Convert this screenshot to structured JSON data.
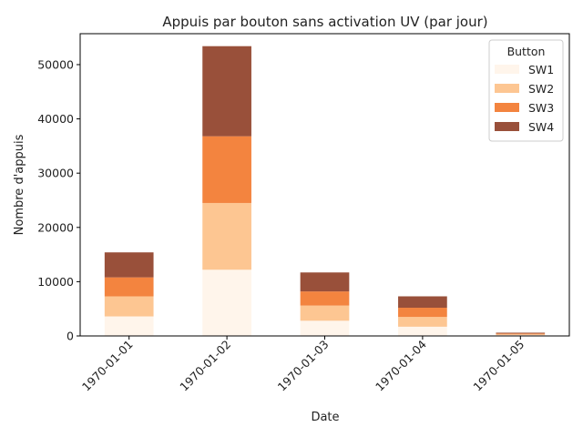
{
  "chart_data": {
    "type": "bar",
    "stacked": true,
    "title": "Appuis par bouton sans activation UV (par jour)",
    "xlabel": "Date",
    "ylabel": "Nombre d'appuis",
    "ylim": [
      0,
      55700
    ],
    "yticks": [
      0,
      10000,
      20000,
      30000,
      40000,
      50000
    ],
    "grid": false,
    "legend": {
      "title": "Button",
      "placement": "top-right"
    },
    "categories": [
      "1970-01-01",
      "1970-01-02",
      "1970-01-03",
      "1970-01-04",
      "1970-01-05"
    ],
    "series": [
      {
        "name": "SW1",
        "color": "#fff5eb",
        "values": [
          3600,
          12200,
          2800,
          1700,
          150
        ]
      },
      {
        "name": "SW2",
        "color": "#fdc692",
        "values": [
          3700,
          12300,
          2800,
          1800,
          150
        ]
      },
      {
        "name": "SW3",
        "color": "#f3843f",
        "values": [
          3500,
          12300,
          2600,
          1700,
          150
        ]
      },
      {
        "name": "SW4",
        "color": "#99503a",
        "values": [
          4600,
          16600,
          3500,
          2100,
          150
        ]
      }
    ]
  }
}
